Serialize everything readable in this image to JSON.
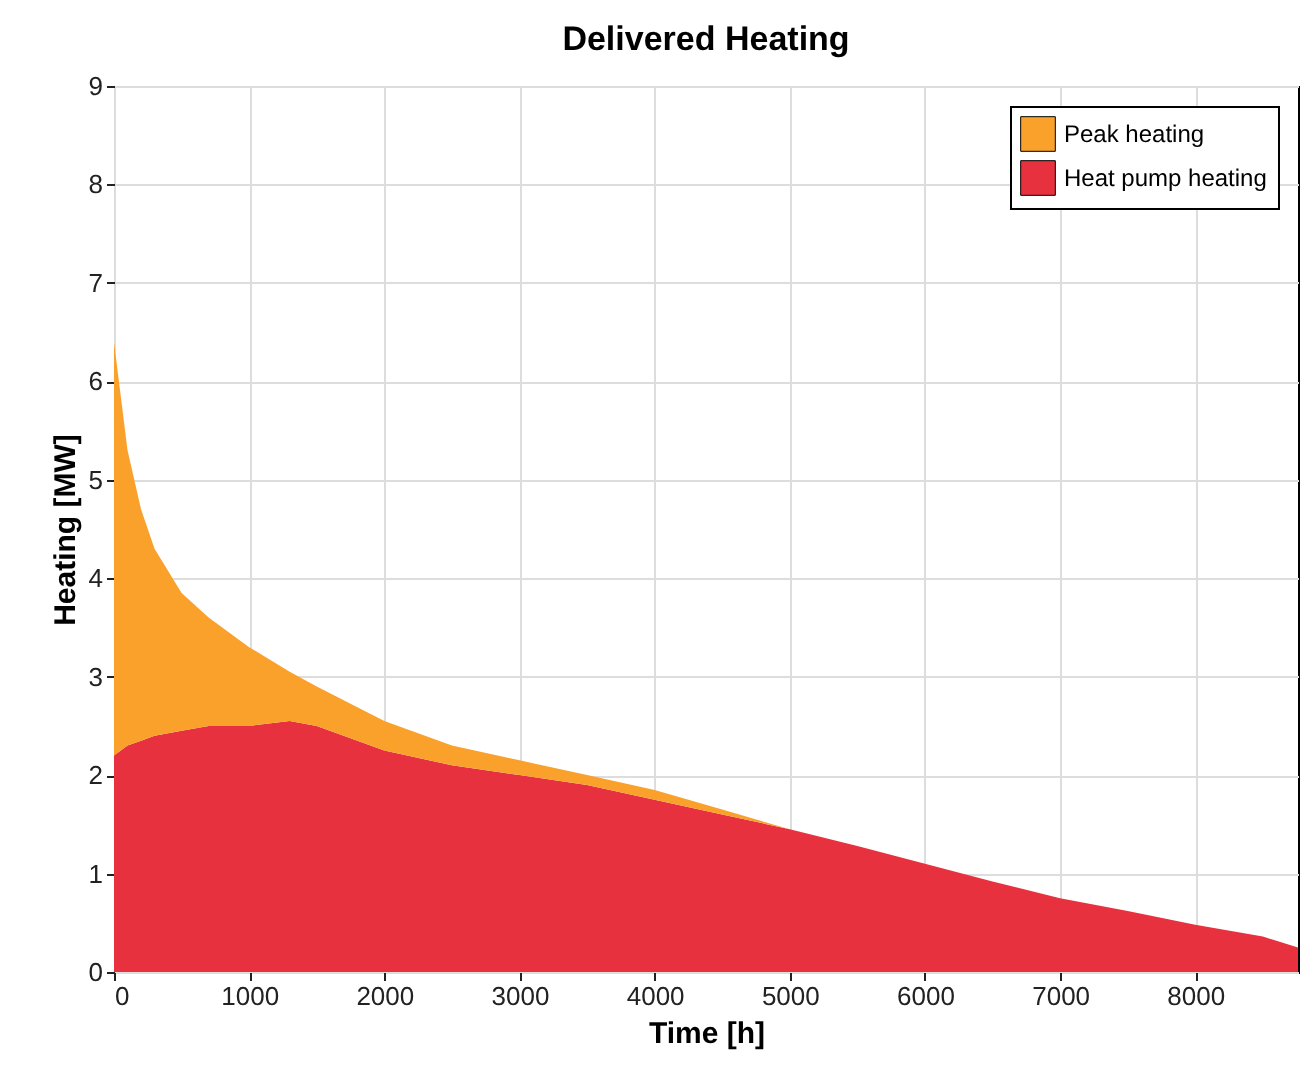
{
  "chart_data": {
    "type": "area",
    "stacked": true,
    "title": "Delivered Heating",
    "xlabel": "Time [h]",
    "ylabel": "Heating [MW]",
    "x": [
      0,
      100,
      200,
      300,
      500,
      700,
      1000,
      1300,
      1500,
      2000,
      2500,
      3000,
      3500,
      4000,
      4500,
      5000,
      5500,
      6000,
      6500,
      7000,
      7500,
      8000,
      8500,
      8760
    ],
    "series": [
      {
        "name": "Heat pump heating",
        "color": "#e8313f",
        "values": [
          2.2,
          2.3,
          2.35,
          2.4,
          2.45,
          2.5,
          2.5,
          2.55,
          2.5,
          2.25,
          2.1,
          2.0,
          1.9,
          1.75,
          1.6,
          1.45,
          1.28,
          1.1,
          0.92,
          0.75,
          0.62,
          0.48,
          0.36,
          0.25
        ]
      },
      {
        "name": "Peak heating",
        "color": "#f9a12b",
        "values": [
          4.2,
          3.0,
          2.35,
          1.9,
          1.4,
          1.1,
          0.8,
          0.5,
          0.4,
          0.3,
          0.2,
          0.15,
          0.1,
          0.1,
          0.05,
          0,
          0,
          0,
          0,
          0,
          0,
          0,
          0,
          0
        ]
      }
    ],
    "xlim": [
      0,
      8760
    ],
    "xticks": [
      0,
      1000,
      2000,
      3000,
      4000,
      5000,
      6000,
      7000,
      8000
    ],
    "ylim": [
      0,
      9
    ],
    "yticks": [
      0,
      1,
      2,
      3,
      4,
      5,
      6,
      7,
      8,
      9
    ],
    "grid": true,
    "legend": "top right"
  }
}
